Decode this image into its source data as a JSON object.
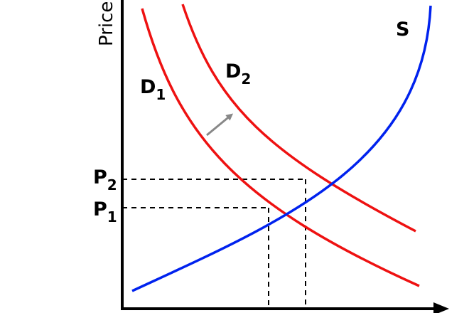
{
  "axis": {
    "y_title": "Price"
  },
  "curves": {
    "supply": {
      "label": "S",
      "color": "#0022ee"
    },
    "demand1": {
      "label": "D",
      "sub": "1",
      "color": "#ee1111"
    },
    "demand2": {
      "label": "D",
      "sub": "2",
      "color": "#ee1111"
    }
  },
  "price_levels": {
    "p1": {
      "label": "P",
      "sub": "1"
    },
    "p2": {
      "label": "P",
      "sub": "2"
    }
  },
  "shift_arrow_color": "#888888"
}
